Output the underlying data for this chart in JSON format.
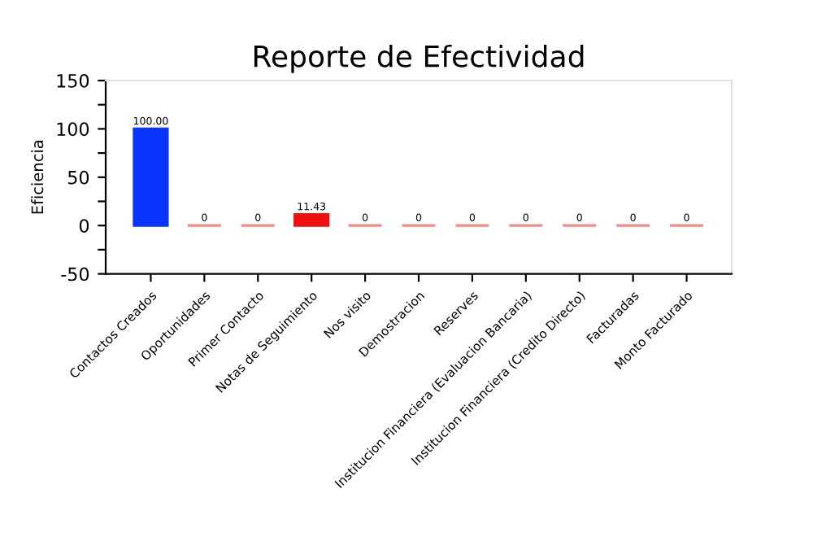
{
  "chart_data": {
    "type": "bar",
    "title": "Reporte de Efectividad",
    "ylabel": "Eficiencia",
    "categories": [
      "Contactos Creados",
      "Oportunidades",
      "Primer Contacto",
      "Notas de Seguimiento",
      "Nos visito",
      "Demostracion",
      "Reserves",
      "Institucion Financiera (Evaluacion Bancaria)",
      "Institucion Financiera (Credito Directo)",
      "Facturadas",
      "Monto Facturado"
    ],
    "values": [
      100,
      0,
      0,
      11.43,
      0,
      0,
      0,
      0,
      0,
      0,
      0
    ],
    "colors": [
      "#0a34ff",
      "#f48a8a",
      "#f48a8a",
      "#f01010",
      "#f48a8a",
      "#f48a8a",
      "#f48a8a",
      "#f48a8a",
      "#f48a8a",
      "#f48a8a",
      "#f48a8a"
    ],
    "value_labels": [
      "100.00",
      "0",
      "0",
      "11.43",
      "0",
      "0",
      "0",
      "0",
      "0",
      "0",
      "0"
    ],
    "ylim": [
      -50,
      150
    ],
    "yticks": [
      -50,
      {
        "value": -25,
        "label": null
      },
      0,
      {
        "value": 25,
        "label": null
      },
      50,
      {
        "value": 75,
        "label": null
      },
      100,
      {
        "value": 125,
        "label": null
      },
      150
    ],
    "grid": false
  }
}
